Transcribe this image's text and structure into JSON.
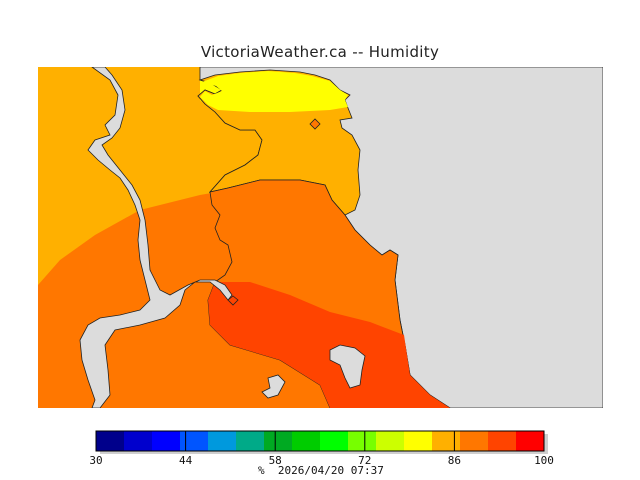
{
  "title": "VictoriaWeather.ca -- Humidity",
  "legend": {
    "unit": "%",
    "timestamp": "2026/04/20 07:37",
    "min": 30,
    "max": 100,
    "tick_labels": [
      "30",
      "44",
      "58",
      "72",
      "86",
      "100"
    ],
    "colors": [
      "#00008b",
      "#0000cd",
      "#0000ff",
      "#0055ff",
      "#0099dd",
      "#00aa88",
      "#00aa22",
      "#00cc00",
      "#00ff00",
      "#77ff00",
      "#ccff00",
      "#ffff00",
      "#ffb000",
      "#ff7700",
      "#ff4400",
      "#ff0000"
    ]
  },
  "map": {
    "land_color": "#dcdcdc",
    "zones": [
      {
        "name": "humidity-84-88",
        "color": "#ffb000"
      },
      {
        "name": "humidity-88-93",
        "color": "#ff7700"
      },
      {
        "name": "humidity-93-97",
        "color": "#ff4400"
      },
      {
        "name": "humidity-79-84",
        "color": "#ffff00"
      }
    ]
  }
}
